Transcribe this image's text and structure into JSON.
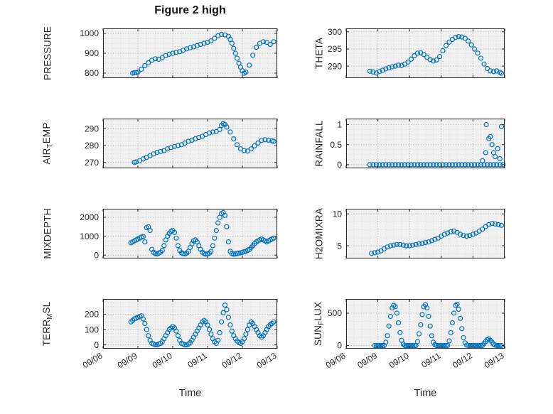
{
  "colors": {
    "marker": "#0072BD",
    "axis": "#262626",
    "text": "#262626",
    "grid_major": "#b0b0b0",
    "grid_minor": "#d8d8d8",
    "axes_bg": "#f0f0f0",
    "page_bg": "#ffffff"
  },
  "chart_data": {
    "type": "scatter",
    "title": "Figure 2 high",
    "xlabel": "Time",
    "xlim": [
      8,
      13
    ],
    "x_tick_values": [
      8,
      9,
      10,
      11,
      12,
      13
    ],
    "x_ticks": [
      "09/08",
      "09/09",
      "09/10",
      "09/11",
      "09/12",
      "09/13"
    ],
    "x_minor_step": 0.25,
    "legend": "none",
    "grid": "major+minor dotted",
    "subplots": [
      {
        "name": "PRESSURE",
        "ylabel_parts": [
          {
            "t": "PRESSURE"
          }
        ],
        "ylim": [
          775,
          1025
        ],
        "yticks": [
          800,
          900,
          1000
        ],
        "series": [
          {
            "x": [
              8.85,
              8.9,
              8.95,
              9.0,
              9.1,
              9.2,
              9.3,
              9.4,
              9.5,
              9.6,
              9.7,
              9.8,
              9.9,
              10.0,
              10.1,
              10.2,
              10.3,
              10.4,
              10.5,
              10.6,
              10.7,
              10.8,
              10.9,
              11.0,
              11.1,
              11.2,
              11.3,
              11.4,
              11.5,
              11.6,
              11.65,
              11.7,
              11.75,
              11.8,
              11.85,
              11.9,
              11.95,
              12.0,
              12.05,
              12.1,
              12.2,
              12.3,
              12.4,
              12.5,
              12.6,
              12.7,
              12.8,
              12.9
            ],
            "y": [
              800,
              802,
              803,
              805,
              820,
              838,
              852,
              865,
              872,
              870,
              878,
              888,
              895,
              900,
              905,
              908,
              915,
              922,
              928,
              932,
              938,
              945,
              950,
              955,
              962,
              975,
              988,
              995,
              992,
              985,
              970,
              950,
              925,
              900,
              875,
              850,
              830,
              812,
              800,
              805,
              840,
              890,
              930,
              950,
              958,
              955,
              945,
              958
            ]
          }
        ]
      },
      {
        "name": "THETA",
        "ylabel_parts": [
          {
            "t": "THETA"
          }
        ],
        "ylim": [
          286.5,
          301
        ],
        "yticks": [
          290,
          295,
          300
        ],
        "series": [
          {
            "x": [
              8.75,
              8.85,
              8.95,
              9.05,
              9.15,
              9.25,
              9.35,
              9.45,
              9.55,
              9.65,
              9.75,
              9.85,
              9.95,
              10.05,
              10.15,
              10.25,
              10.35,
              10.45,
              10.55,
              10.65,
              10.75,
              10.85,
              10.95,
              11.05,
              11.15,
              11.25,
              11.35,
              11.45,
              11.55,
              11.65,
              11.75,
              11.85,
              11.95,
              12.05,
              12.15,
              12.25,
              12.35,
              12.45,
              12.55,
              12.65,
              12.75,
              12.85,
              12.9
            ],
            "y": [
              288.5,
              288.3,
              288.0,
              288.4,
              288.8,
              289.2,
              289.5,
              289.8,
              290.0,
              290.3,
              290.2,
              290.6,
              291.2,
              292.0,
              293.0,
              293.8,
              293.9,
              293.4,
              292.6,
              291.9,
              291.5,
              291.8,
              292.8,
              294.5,
              296.0,
              297.0,
              297.8,
              298.4,
              298.6,
              298.5,
              298.1,
              297.3,
              296.2,
              295.0,
              293.8,
              292.3,
              290.6,
              289.3,
              288.6,
              288.4,
              288.6,
              288.2,
              287.9
            ]
          }
        ]
      },
      {
        "name": "AIR_TEMP",
        "ylabel_parts": [
          {
            "t": "AIR"
          },
          {
            "t": "T",
            "sub": true
          },
          {
            "t": "EMP"
          }
        ],
        "ylim": [
          266.5,
          296
        ],
        "yticks": [
          270,
          280,
          290
        ],
        "series": [
          {
            "x": [
              8.9,
              8.95,
              9.05,
              9.15,
              9.25,
              9.35,
              9.45,
              9.55,
              9.65,
              9.75,
              9.85,
              9.95,
              10.05,
              10.15,
              10.25,
              10.35,
              10.45,
              10.55,
              10.65,
              10.75,
              10.85,
              10.95,
              11.05,
              11.15,
              11.25,
              11.35,
              11.4,
              11.45,
              11.5,
              11.55,
              11.65,
              11.75,
              11.85,
              11.95,
              12.05,
              12.15,
              12.25,
              12.35,
              12.45,
              12.55,
              12.65,
              12.75,
              12.85,
              12.9
            ],
            "y": [
              270,
              270.3,
              271,
              272,
              273,
              274,
              275,
              276,
              276.5,
              277,
              278,
              278.8,
              279.5,
              280,
              280.5,
              281.5,
              282.5,
              283.2,
              284,
              284.8,
              285.5,
              286.5,
              287.5,
              288,
              288.3,
              289.5,
              292,
              293,
              292.5,
              291,
              288,
              284,
              280.5,
              278,
              277,
              276.8,
              278,
              279.8,
              281.5,
              283,
              283.5,
              283.2,
              282.8,
              282.5
            ]
          }
        ]
      },
      {
        "name": "RAINFALL",
        "ylabel_parts": [
          {
            "t": "RAINFALL"
          }
        ],
        "ylim": [
          -0.09,
          1.15
        ],
        "yticks": [
          0,
          0.5,
          1
        ],
        "series": [
          {
            "x0": 8.75,
            "dx": 0.1,
            "y": [
              0,
              0,
              0,
              0,
              0,
              0,
              0,
              0,
              0,
              0,
              0,
              0,
              0,
              0,
              0,
              0,
              0,
              0,
              0,
              0,
              0,
              0,
              0,
              0,
              0,
              0,
              0,
              0,
              0,
              0,
              0,
              0,
              0,
              0,
              0,
              0,
              0,
              0,
              0,
              0,
              0,
              0,
              0
            ]
          },
          {
            "x": [
              12.3,
              12.4,
              12.42,
              12.5,
              12.55,
              12.6,
              12.65,
              12.7,
              12.78,
              12.85,
              12.9
            ],
            "y": [
              0.1,
              0.3,
              1.0,
              0.65,
              0.7,
              0.5,
              0.3,
              0.2,
              0.4,
              0.15,
              0.95
            ]
          }
        ]
      },
      {
        "name": "MIXDEPTH",
        "ylabel_parts": [
          {
            "t": "MIXDEPTH"
          }
        ],
        "ylim": [
          -180,
          2450
        ],
        "yticks": [
          0,
          1000,
          2000
        ],
        "series": [
          {
            "x0": 8.8,
            "dx": 0.05,
            "y": [
              650,
              700,
              750,
              800,
              850,
              900,
              950,
              980,
              700,
              1450,
              1500,
              1300,
              300,
              150,
              80,
              60,
              100,
              150,
              250,
              500,
              800,
              1000,
              1150,
              1250,
              1300,
              1200,
              900,
              500,
              250,
              120,
              80,
              60,
              100,
              200,
              400,
              600,
              750,
              800,
              700,
              500,
              300,
              150,
              80,
              50,
              60,
              100,
              200,
              500,
              900,
              1300,
              1700,
              2000,
              2200,
              2250,
              2100,
              1500,
              700,
              200,
              80,
              50,
              60,
              80,
              100,
              120,
              150,
              180,
              200,
              250,
              300,
              400,
              500,
              600,
              700,
              750,
              800,
              850,
              800,
              750,
              700,
              750,
              800,
              850,
              900
            ]
          }
        ]
      },
      {
        "name": "H2OMIXRA",
        "ylabel_parts": [
          {
            "t": "H2OMIXRA"
          }
        ],
        "ylim": [
          3,
          10.8
        ],
        "yticks": [
          5,
          10
        ],
        "series": [
          {
            "x0": 8.8,
            "dx": 0.1,
            "y": [
              3.8,
              3.9,
              4.0,
              4.2,
              4.5,
              4.8,
              5.0,
              5.1,
              5.2,
              5.2,
              5.1,
              5.0,
              5.0,
              5.1,
              5.2,
              5.3,
              5.4,
              5.5,
              5.6,
              5.8,
              6.0,
              6.2,
              6.5,
              6.8,
              7.0,
              7.2,
              7.3,
              7.1,
              6.8,
              6.6,
              6.5,
              6.6,
              6.8,
              7.0,
              7.3,
              7.6,
              8.0,
              8.3,
              8.5,
              8.4,
              8.3,
              8.2
            ]
          }
        ]
      },
      {
        "name": "TERR_MSL",
        "ylabel_parts": [
          {
            "t": "TERR"
          },
          {
            "t": "M",
            "sub": true
          },
          {
            "t": "SL"
          }
        ],
        "ylim": [
          -25,
          300
        ],
        "yticks": [
          0,
          100,
          200
        ],
        "series": [
          {
            "x0": 8.8,
            "dx": 0.05,
            "y": [
              150,
              160,
              170,
              175,
              180,
              185,
              190,
              170,
              140,
              100,
              60,
              30,
              10,
              5,
              0,
              0,
              5,
              10,
              20,
              40,
              60,
              80,
              100,
              110,
              120,
              110,
              90,
              60,
              30,
              10,
              5,
              0,
              0,
              5,
              15,
              30,
              50,
              70,
              90,
              110,
              130,
              150,
              160,
              150,
              130,
              100,
              70,
              40,
              20,
              10,
              30,
              80,
              150,
              210,
              260,
              230,
              180,
              130,
              90,
              60,
              40,
              25,
              15,
              10,
              20,
              40,
              70,
              100,
              130,
              150,
              140,
              120,
              100,
              80,
              60,
              50,
              60,
              80,
              100,
              120,
              130,
              140,
              150
            ]
          }
        ]
      },
      {
        "name": "SUN_FLUX",
        "ylabel_parts": [
          {
            "t": "SUN"
          },
          {
            "t": "F",
            "sub": true
          },
          {
            "t": "LUX"
          }
        ],
        "ylim": [
          -50,
          720
        ],
        "yticks": [
          0,
          500
        ],
        "series": [
          {
            "x0": 8.9,
            "dx": 0.05,
            "y": [
              0,
              0,
              0,
              0,
              0,
              0,
              0,
              50,
              150,
              300,
              450,
              580,
              620,
              600,
              500,
              350,
              200,
              80,
              20,
              0,
              0,
              0,
              0,
              0,
              0,
              0,
              0,
              60,
              180,
              320,
              480,
              600,
              630,
              580,
              450,
              300,
              150,
              50,
              10,
              0,
              0,
              0,
              0,
              0,
              0,
              0,
              0,
              70,
              200,
              350,
              500,
              620,
              640,
              560,
              420,
              260,
              120,
              40,
              5,
              0,
              0,
              0,
              0,
              0,
              0,
              0,
              0,
              0,
              0,
              30,
              60,
              90,
              100,
              80,
              50,
              20,
              5,
              0,
              0,
              0,
              0
            ]
          }
        ]
      }
    ]
  }
}
